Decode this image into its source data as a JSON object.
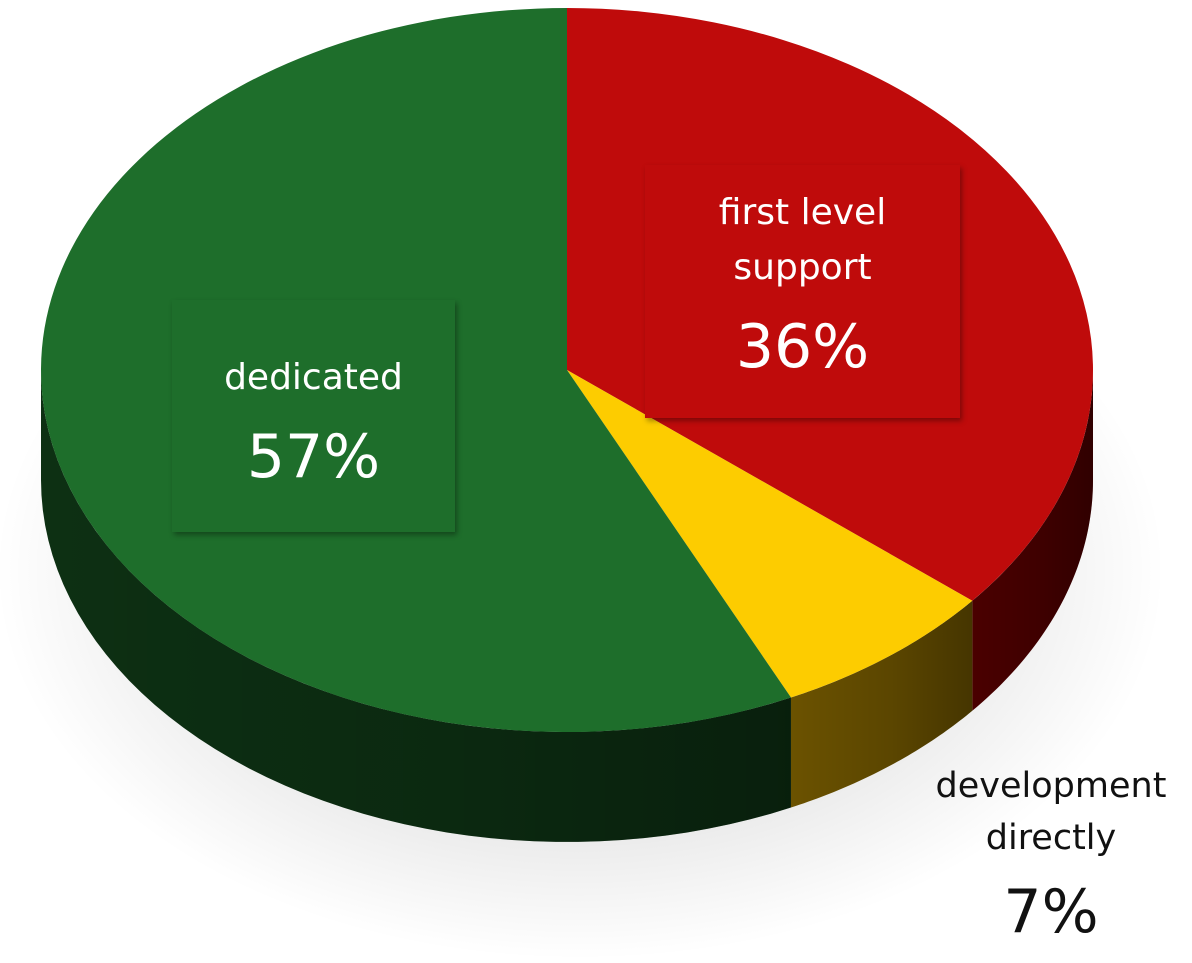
{
  "chart_data": {
    "type": "pie",
    "style": "3d",
    "slices": [
      {
        "label": "first level support",
        "value": 36,
        "display": "36%",
        "color": "#bf0b0b",
        "side_color": "#4a0000"
      },
      {
        "label": "development directly",
        "value": 7,
        "display": "7%",
        "color": "#fdcc00",
        "side_color": "#6b5200"
      },
      {
        "label": "dedicated",
        "value": 57,
        "display": "57%",
        "color": "#1e6e2b",
        "side_color": "#0d3013"
      }
    ],
    "labels": {
      "first": {
        "line1": "first level",
        "line2": "support",
        "pct": "36%"
      },
      "dev": {
        "line1": "development",
        "line2": "directly",
        "pct": "7%"
      },
      "dedicated": {
        "line1": "dedicated",
        "pct": "57%"
      }
    }
  }
}
